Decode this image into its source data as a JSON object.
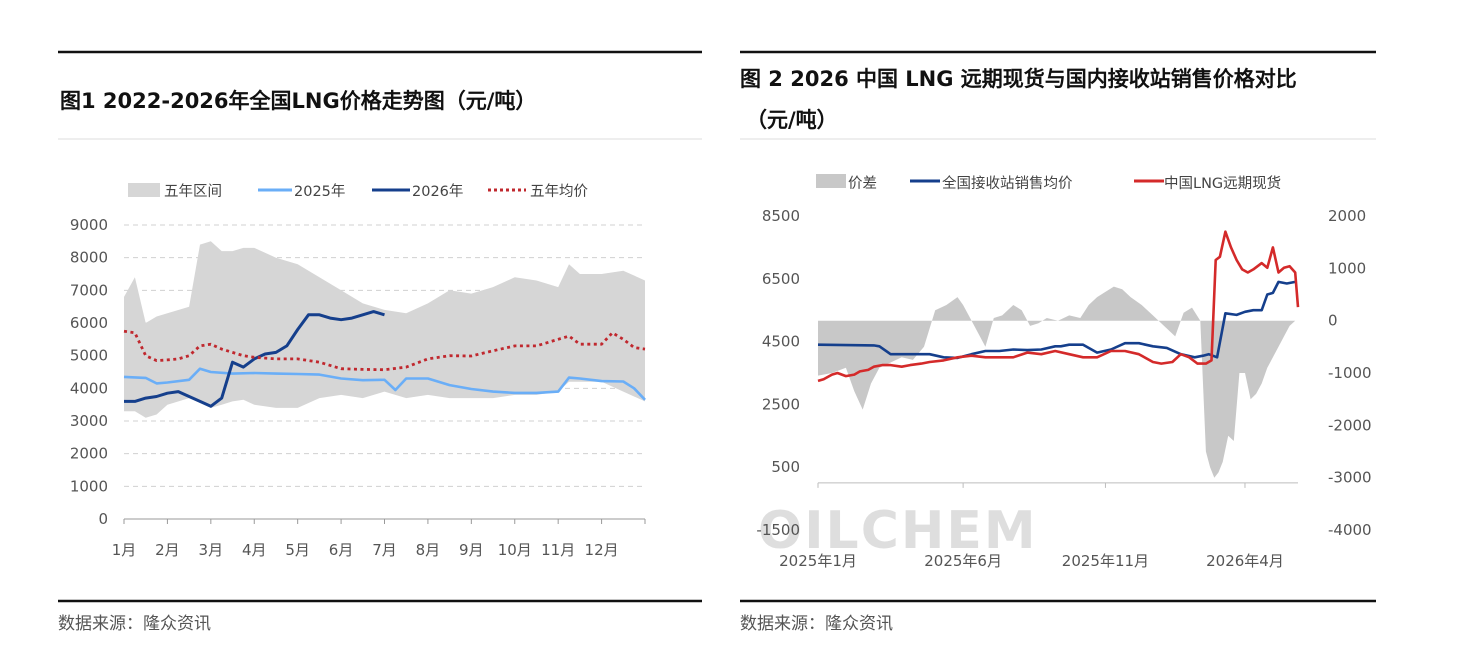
{
  "colors": {
    "band": "#d6d6d6",
    "s2025": "#6aaef7",
    "s2026": "#153f8c",
    "avg": "#c0282e",
    "spread": "#c8c8c8",
    "station": "#153f8c",
    "lng": "#d42a2a"
  },
  "left": {
    "title": "图1 2022-2026年全国LNG价格走势图（元/吨）",
    "source": "数据来源：隆众资讯"
  },
  "right": {
    "title_line1": "图 2  2026 中国 LNG 远期现货与国内接收站销售价格对比",
    "title_line2": "（元/吨）",
    "source": "数据来源：隆众资讯",
    "watermark": "OILCHEM"
  },
  "chart_data": [
    {
      "type": "line",
      "legend": [
        "五年区间",
        "2025年",
        "2026年",
        "五年均价"
      ],
      "legend_position": "top",
      "categories": [
        "1月",
        "2月",
        "3月",
        "4月",
        "5月",
        "6月",
        "7月",
        "8月",
        "9月",
        "10月",
        "11月",
        "12月"
      ],
      "ylim": [
        0,
        9000
      ],
      "yticks": [
        0,
        1000,
        2000,
        3000,
        4000,
        5000,
        6000,
        7000,
        8000,
        9000
      ],
      "grid": true,
      "x_domain": [
        1,
        13
      ],
      "band": {
        "name": "五年区间",
        "x": [
          1,
          1.25,
          1.5,
          1.75,
          2,
          2.5,
          2.75,
          3,
          3.25,
          3.5,
          3.75,
          4,
          4.5,
          5,
          5.5,
          6,
          6.5,
          7,
          7.5,
          8,
          8.5,
          9,
          9.5,
          10,
          10.5,
          11,
          11.25,
          11.5,
          12,
          12.5,
          13
        ],
        "upper": [
          6800,
          7400,
          6000,
          6200,
          6300,
          6500,
          8400,
          8500,
          8200,
          8200,
          8300,
          8300,
          8000,
          7800,
          7400,
          7000,
          6600,
          6400,
          6300,
          6600,
          7000,
          6900,
          7100,
          7400,
          7300,
          7100,
          7800,
          7500,
          7500,
          7600,
          7300
        ],
        "lower": [
          3300,
          3300,
          3100,
          3200,
          3500,
          3700,
          3600,
          3400,
          3500,
          3600,
          3650,
          3500,
          3400,
          3400,
          3700,
          3800,
          3700,
          3900,
          3700,
          3800,
          3700,
          3700,
          3700,
          3800,
          3800,
          3900,
          4200,
          4200,
          4200,
          3900,
          3600
        ]
      },
      "series": [
        {
          "name": "2025年",
          "x": [
            1,
            1.5,
            1.75,
            2,
            2.5,
            2.75,
            3,
            3.5,
            4,
            4.5,
            5,
            5.5,
            6,
            6.5,
            7,
            7.25,
            7.5,
            8,
            8.5,
            9,
            9.5,
            10,
            10.5,
            11,
            11.25,
            11.5,
            12,
            12.5,
            12.75,
            13
          ],
          "values": [
            4350,
            4320,
            4150,
            4180,
            4260,
            4600,
            4500,
            4450,
            4470,
            4450,
            4440,
            4420,
            4300,
            4250,
            4260,
            3950,
            4300,
            4300,
            4100,
            3980,
            3900,
            3860,
            3860,
            3900,
            4330,
            4300,
            4220,
            4210,
            4000,
            3650
          ]
        },
        {
          "name": "2026年",
          "x": [
            1,
            1.25,
            1.5,
            1.75,
            2,
            2.25,
            2.5,
            2.75,
            3,
            3.25,
            3.5,
            3.75,
            4,
            4.25,
            4.5,
            4.75,
            5,
            5.25,
            5.5,
            5.75,
            6,
            6.25,
            6.5,
            6.75,
            7
          ],
          "values": [
            3600,
            3600,
            3700,
            3750,
            3850,
            3900,
            3750,
            3600,
            3450,
            3700,
            4800,
            4650,
            4900,
            5050,
            5100,
            5300,
            5800,
            6250,
            6250,
            6150,
            6100,
            6150,
            6250,
            6350,
            6250
          ]
        },
        {
          "name": "五年均价",
          "x": [
            1,
            1.25,
            1.5,
            1.75,
            2,
            2.25,
            2.5,
            2.75,
            3,
            3.25,
            3.5,
            3.75,
            4,
            4.5,
            5,
            5.5,
            6,
            6.5,
            7,
            7.5,
            8,
            8.5,
            9,
            9.5,
            10,
            10.5,
            11,
            11.25,
            11.5,
            12,
            12.25,
            12.5,
            12.75,
            13
          ],
          "values": [
            5750,
            5700,
            5000,
            4850,
            4870,
            4900,
            5000,
            5300,
            5350,
            5200,
            5100,
            5000,
            4950,
            4900,
            4900,
            4800,
            4600,
            4580,
            4570,
            4650,
            4900,
            5000,
            4990,
            5150,
            5300,
            5300,
            5500,
            5600,
            5350,
            5350,
            5700,
            5500,
            5250,
            5200
          ]
        }
      ]
    },
    {
      "type": "line",
      "legend": [
        "价差",
        "全国接收站销售均价",
        "中国LNG远期现货"
      ],
      "legend_position": "top",
      "x_ticks": [
        "2025年1月",
        "2025年6月",
        "2025年11月",
        "2026年4月"
      ],
      "y_left": {
        "lim": [
          -1500,
          8500
        ],
        "ticks": [
          -1500,
          500,
          2500,
          4500,
          6500,
          8500
        ]
      },
      "y_right": {
        "lim": [
          -4000,
          2000
        ],
        "ticks": [
          -4000,
          -3000,
          -2000,
          -1000,
          0,
          1000,
          2000
        ]
      },
      "x_domain": [
        0,
        17.2
      ],
      "spread": {
        "name": "价差",
        "axis": "right",
        "x": [
          0,
          0.5,
          1,
          1.3,
          1.6,
          1.9,
          2.2,
          2.6,
          3,
          3.4,
          3.8,
          4.2,
          4.6,
          5,
          5.2,
          5.4,
          5.7,
          6,
          6.3,
          6.6,
          7,
          7.3,
          7.6,
          7.9,
          8.2,
          8.6,
          9,
          9.4,
          9.7,
          10,
          10.3,
          10.6,
          10.9,
          11.2,
          11.6,
          12,
          12.4,
          12.8,
          13.1,
          13.4,
          13.7,
          13.9,
          14.05,
          14.2,
          14.35,
          14.5,
          14.7,
          14.9,
          15.1,
          15.3,
          15.5,
          15.7,
          15.9,
          16.1,
          16.3,
          16.5,
          16.7,
          16.9,
          17.1
        ],
        "values": [
          -1050,
          -1000,
          -900,
          -1350,
          -1700,
          -1200,
          -900,
          -800,
          -700,
          -750,
          -500,
          200,
          300,
          450,
          300,
          100,
          -200,
          -500,
          50,
          100,
          300,
          200,
          -100,
          -50,
          50,
          0,
          100,
          50,
          300,
          450,
          550,
          650,
          600,
          450,
          300,
          100,
          -100,
          -300,
          150,
          250,
          0,
          -2500,
          -2800,
          -3000,
          -2900,
          -2700,
          -2200,
          -2300,
          -1000,
          -1000,
          -1500,
          -1400,
          -1200,
          -900,
          -700,
          -500,
          -300,
          -100,
          0
        ]
      },
      "series": [
        {
          "name": "全国接收站销售均价",
          "axis": "left",
          "x": [
            0,
            1,
            2,
            2.2,
            2.6,
            3,
            3.5,
            4,
            4.5,
            5,
            5.5,
            6,
            6.5,
            7,
            7.5,
            8,
            8.5,
            8.7,
            9,
            9.5,
            10,
            10.5,
            11,
            11.5,
            12,
            12.5,
            13,
            13.5,
            13.8,
            14,
            14.3,
            14.6,
            15,
            15.3,
            15.6,
            15.9,
            16.1,
            16.3,
            16.5,
            16.8,
            17.1
          ],
          "values": [
            4400,
            4390,
            4380,
            4350,
            4100,
            4100,
            4100,
            4100,
            4000,
            3980,
            4100,
            4200,
            4200,
            4250,
            4230,
            4250,
            4350,
            4350,
            4400,
            4400,
            4150,
            4250,
            4450,
            4450,
            4350,
            4300,
            4100,
            4000,
            4050,
            4100,
            4000,
            5400,
            5350,
            5450,
            5500,
            5500,
            6000,
            6050,
            6400,
            6350,
            6400
          ]
        },
        {
          "name": "中国LNG远期现货",
          "axis": "left",
          "x": [
            0,
            0.2,
            0.5,
            0.7,
            1,
            1.3,
            1.5,
            1.8,
            2,
            2.3,
            2.6,
            3,
            3.3,
            3.7,
            4,
            4.5,
            5,
            5.5,
            6,
            6.5,
            7,
            7.5,
            8,
            8.5,
            9,
            9.5,
            10,
            10.5,
            11,
            11.5,
            12,
            12.3,
            12.7,
            13,
            13.3,
            13.6,
            13.9,
            14.1,
            14.25,
            14.4,
            14.6,
            14.8,
            15,
            15.2,
            15.4,
            15.6,
            15.9,
            16.1,
            16.3,
            16.5,
            16.7,
            16.9,
            17.1,
            17.2
          ],
          "values": [
            3250,
            3300,
            3450,
            3500,
            3400,
            3450,
            3550,
            3600,
            3700,
            3750,
            3750,
            3700,
            3750,
            3800,
            3850,
            3900,
            4000,
            4050,
            4000,
            4000,
            4000,
            4150,
            4100,
            4200,
            4100,
            4000,
            4000,
            4200,
            4200,
            4100,
            3850,
            3800,
            3850,
            4100,
            4000,
            3800,
            3800,
            3900,
            7100,
            7200,
            8000,
            7500,
            7100,
            6800,
            6700,
            6800,
            7000,
            6850,
            7500,
            6700,
            6850,
            6900,
            6700,
            5600
          ]
        }
      ]
    }
  ]
}
